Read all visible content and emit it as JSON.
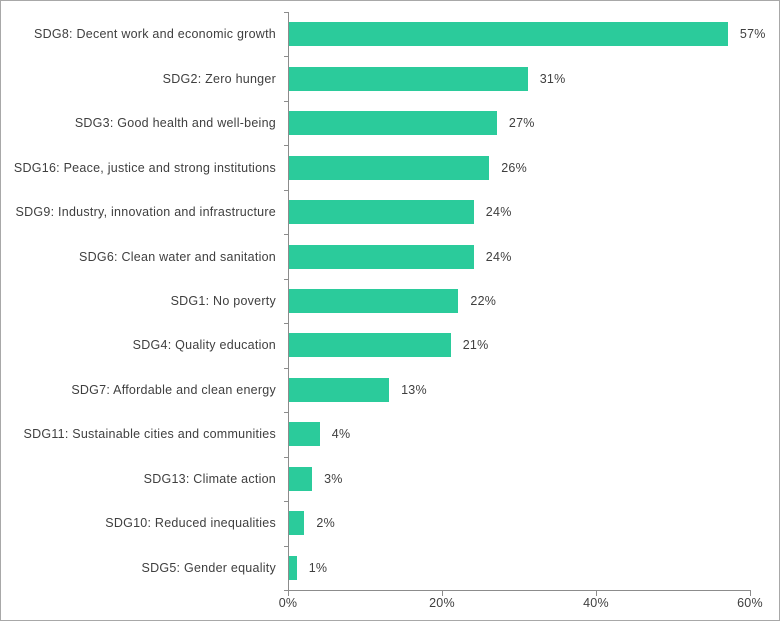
{
  "chart_data": {
    "type": "bar",
    "orientation": "horizontal",
    "title": "",
    "xlabel": "",
    "ylabel": "",
    "categories": [
      "SDG8: Decent work and economic growth",
      "SDG2: Zero hunger",
      "SDG3: Good health and well-being",
      "SDG16: Peace, justice and strong institutions",
      "SDG9: Industry, innovation and infrastructure",
      "SDG6: Clean water and sanitation",
      "SDG1: No poverty",
      "SDG4: Quality education",
      "SDG7: Affordable and clean energy",
      "SDG11: Sustainable cities and communities",
      "SDG13: Climate action",
      "SDG10: Reduced inequalities",
      "SDG5: Gender equality"
    ],
    "values": [
      57,
      31,
      27,
      26,
      24,
      24,
      22,
      21,
      13,
      4,
      3,
      2,
      1
    ],
    "value_labels": [
      "57%",
      "31%",
      "27%",
      "26%",
      "24%",
      "24%",
      "22%",
      "21%",
      "13%",
      "4%",
      "3%",
      "2%",
      "1%"
    ],
    "x_axis": {
      "min": 0,
      "max": 60,
      "tick_values": [
        0,
        20,
        40,
        60
      ],
      "tick_labels": [
        "0%",
        "20%",
        "40%",
        "60%"
      ]
    },
    "grid": false,
    "legend": null,
    "colors": {
      "bar": "#2BCB9B",
      "axis": "#8C8C8C",
      "text": "#3F3F3F",
      "frame_border": "#A8A8A8",
      "background": "#FFFFFF"
    }
  }
}
